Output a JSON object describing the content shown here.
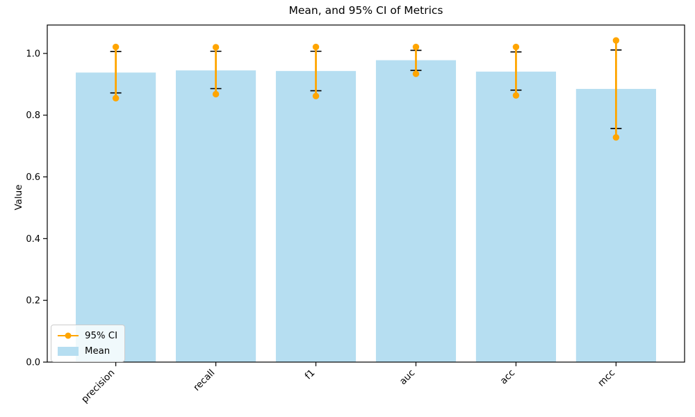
{
  "chart_data": {
    "type": "bar",
    "title": "Mean, and 95% CI of Metrics",
    "ylabel": "Value",
    "xlabel": "",
    "categories": [
      "precision",
      "recall",
      "f1",
      "auc",
      "acc",
      "mcc"
    ],
    "series": [
      {
        "name": "Mean",
        "values": [
          0.938,
          0.945,
          0.943,
          0.978,
          0.941,
          0.885
        ]
      }
    ],
    "error_caps": {
      "low": [
        0.872,
        0.886,
        0.879,
        0.945,
        0.881,
        0.757
      ],
      "high": [
        1.006,
        1.007,
        1.007,
        1.01,
        1.005,
        1.011
      ]
    },
    "ci_95": {
      "low": [
        0.855,
        0.868,
        0.862,
        0.934,
        0.864,
        0.728
      ],
      "high": [
        1.021,
        1.02,
        1.021,
        1.021,
        1.021,
        1.042
      ]
    },
    "ylim": [
      0,
      1.092
    ],
    "xlim": [
      -0.685,
      5.685
    ],
    "yticks": [
      0.0,
      0.2,
      0.4,
      0.6,
      0.8,
      1.0
    ],
    "grid": false,
    "xtick_rotation_deg": 45,
    "legend": {
      "position": "lower left",
      "entries": [
        {
          "label": "95% CI",
          "marker": "line-dot",
          "color": "#FFA500"
        },
        {
          "label": "Mean",
          "marker": "patch",
          "color": "#B6DEF1"
        }
      ]
    },
    "colors": {
      "bar": "#B6DEF1",
      "ci": "#FFA500",
      "error": "#000000",
      "spine": "#000000",
      "text": "#000000"
    }
  }
}
